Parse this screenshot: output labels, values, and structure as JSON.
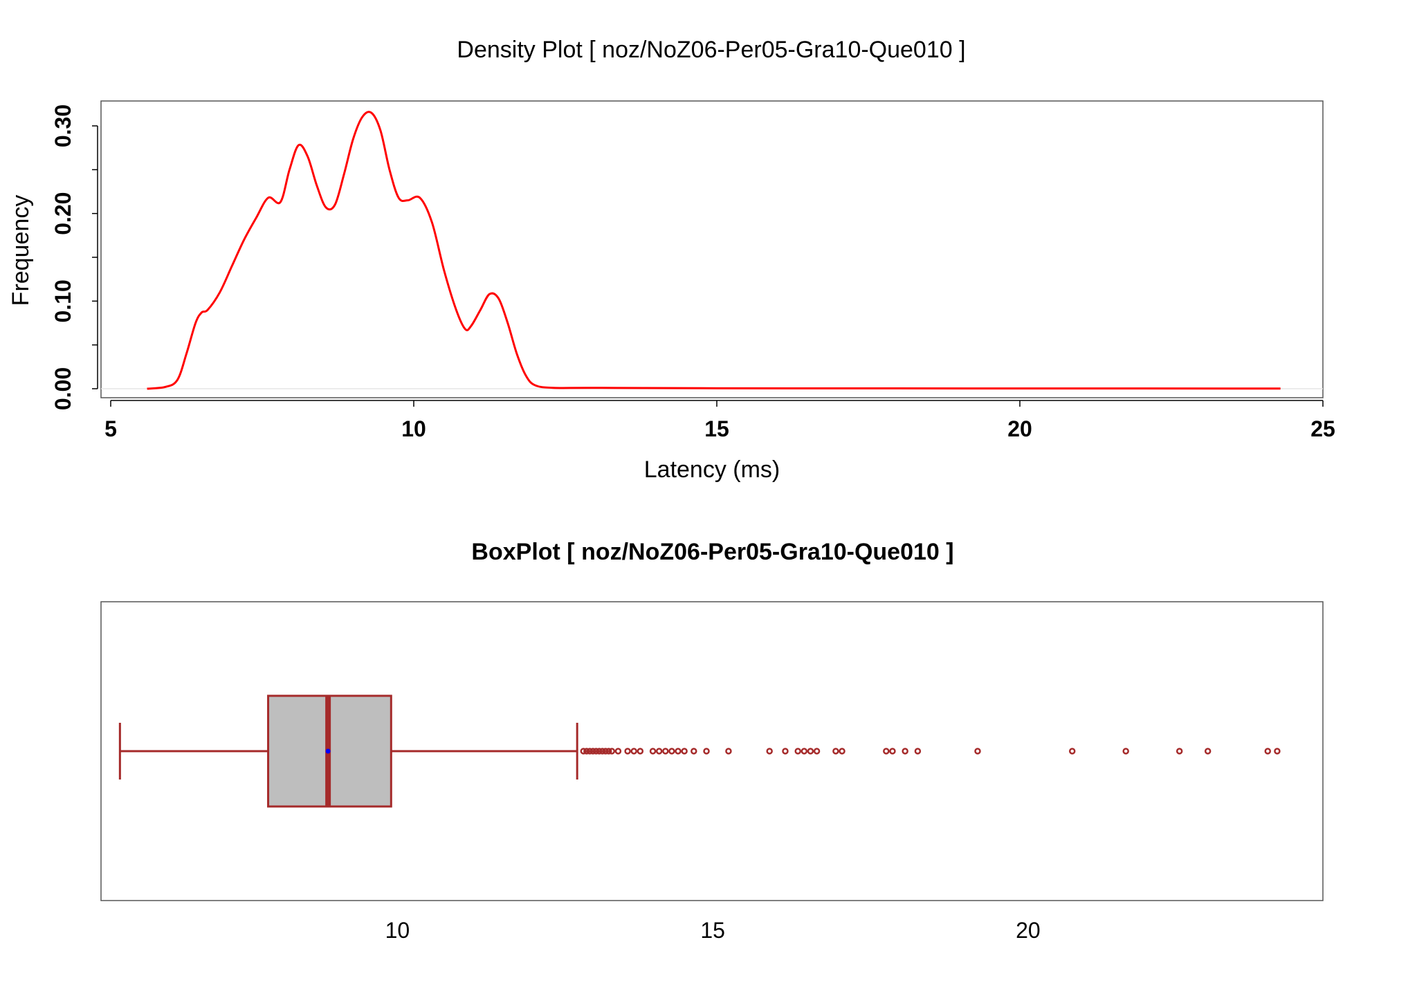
{
  "chart_data": [
    {
      "type": "line",
      "title": "Density Plot [ noz/NoZ06-Per05-Gra10-Que010 ]",
      "xlabel": "Latency (ms)",
      "ylabel": "Frequency",
      "xlim": [
        5,
        25
      ],
      "ylim": [
        0,
        0.32
      ],
      "xticks": [
        5,
        10,
        15,
        20,
        25
      ],
      "xtick_labels": [
        "5",
        "10",
        "15",
        "20",
        "25"
      ],
      "yticks": [
        0,
        0.05,
        0.1,
        0.15,
        0.2,
        0.25,
        0.3
      ],
      "ytick_labels": [
        "0.00",
        "",
        "0.10",
        "",
        "0.20",
        "",
        "0.30"
      ],
      "grid": false,
      "series": [
        {
          "color": "#ff0000",
          "x": [
            5.6,
            5.9,
            6.1,
            6.25,
            6.4,
            6.5,
            6.6,
            6.8,
            7.0,
            7.2,
            7.4,
            7.6,
            7.8,
            7.95,
            8.1,
            8.25,
            8.4,
            8.55,
            8.7,
            8.85,
            9.0,
            9.15,
            9.3,
            9.45,
            9.6,
            9.75,
            9.9,
            10.1,
            10.3,
            10.5,
            10.7,
            10.85,
            10.95,
            11.1,
            11.25,
            11.4,
            11.55,
            11.7,
            11.85,
            12.0,
            12.3,
            13.0,
            15.0,
            20.0,
            24.3
          ],
          "y": [
            0.0,
            0.002,
            0.01,
            0.04,
            0.075,
            0.087,
            0.09,
            0.11,
            0.14,
            0.17,
            0.195,
            0.218,
            0.213,
            0.25,
            0.278,
            0.265,
            0.232,
            0.207,
            0.21,
            0.245,
            0.285,
            0.31,
            0.315,
            0.295,
            0.25,
            0.218,
            0.215,
            0.218,
            0.19,
            0.135,
            0.09,
            0.068,
            0.072,
            0.09,
            0.108,
            0.103,
            0.075,
            0.04,
            0.015,
            0.004,
            0.001,
            0.001,
            0.0005,
            0.0003,
            0.0002
          ]
        }
      ]
    },
    {
      "type": "box",
      "title": "BoxPlot [ noz/NoZ06-Per05-Gra10-Que010 ]",
      "xlim": [
        5,
        25
      ],
      "xticks": [
        10,
        15,
        20
      ],
      "xtick_labels": [
        "10",
        "15",
        "20"
      ],
      "grid": false,
      "colors": {
        "border": "#a52a2a",
        "fill": "#bebebe",
        "mean": "#0000ff"
      },
      "stats": {
        "whisker_low": 5.6,
        "q1": 7.95,
        "median": 8.9,
        "q3": 9.9,
        "whisker_high": 12.85,
        "mean": 8.9
      },
      "outliers": [
        12.95,
        13.0,
        13.05,
        13.1,
        13.15,
        13.2,
        13.25,
        13.3,
        13.35,
        13.4,
        13.5,
        13.65,
        13.75,
        13.85,
        14.05,
        14.15,
        14.25,
        14.35,
        14.45,
        14.55,
        14.7,
        14.9,
        15.25,
        15.9,
        16.15,
        16.35,
        16.45,
        16.55,
        16.65,
        16.95,
        17.05,
        17.75,
        17.85,
        18.05,
        18.25,
        19.2,
        20.7,
        21.55,
        22.4,
        22.85,
        23.8,
        23.95
      ]
    }
  ]
}
